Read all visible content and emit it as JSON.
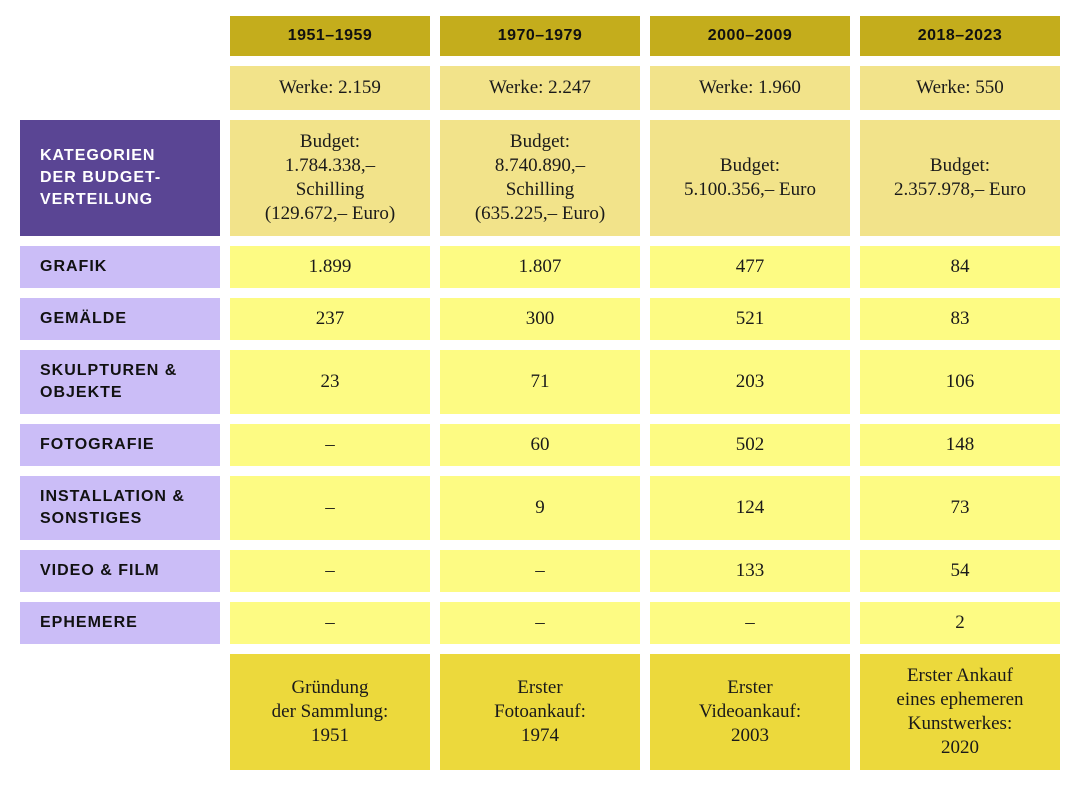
{
  "colors": {
    "header_gold": "#c4ad1c",
    "werke_budget_bg": "#f2e38a",
    "data_bg": "#fdfb83",
    "footer_bg": "#ecd93c",
    "category_header_bg": "#5a4594",
    "category_bg": "#cbbdf7"
  },
  "chart_data": {
    "type": "table",
    "corner_label": "KATEGORIEN\nDER BUDGET-\nVERTEILUNG",
    "periods": [
      "1951–1959",
      "1970–1979",
      "2000–2009",
      "2018–2023"
    ],
    "werke": [
      "Werke: 2.159",
      "Werke: 2.247",
      "Werke: 1.960",
      "Werke: 550"
    ],
    "budget": [
      "Budget:\n1.784.338,–\nSchilling\n(129.672,– Euro)",
      "Budget:\n8.740.890,–\nSchilling\n(635.225,– Euro)",
      "Budget:\n5.100.356,– Euro",
      "Budget:\n2.357.978,– Euro"
    ],
    "rows": [
      {
        "category": "GRAFIK",
        "values": [
          "1.899",
          "1.807",
          "477",
          "84"
        ]
      },
      {
        "category": "GEMÄLDE",
        "values": [
          "237",
          "300",
          "521",
          "83"
        ]
      },
      {
        "category": "SKULPTUREN &\nOBJEKTE",
        "values": [
          "23",
          "71",
          "203",
          "106"
        ]
      },
      {
        "category": "FOTOGRAFIE",
        "values": [
          "–",
          "60",
          "502",
          "148"
        ]
      },
      {
        "category": "INSTALLATION &\nSONSTIGES",
        "values": [
          "–",
          "9",
          "124",
          "73"
        ]
      },
      {
        "category": "VIDEO & FILM",
        "values": [
          "–",
          "–",
          "133",
          "54"
        ]
      },
      {
        "category": "EPHEMERE",
        "values": [
          "–",
          "–",
          "–",
          "2"
        ]
      }
    ],
    "footnotes": [
      "Gründung\nder Sammlung:\n1951",
      "Erster\nFotoankauf:\n1974",
      "Erster\nVideoankauf:\n2003",
      "Erster Ankauf\neines ephemeren\nKunstwerkes:\n2020"
    ]
  }
}
